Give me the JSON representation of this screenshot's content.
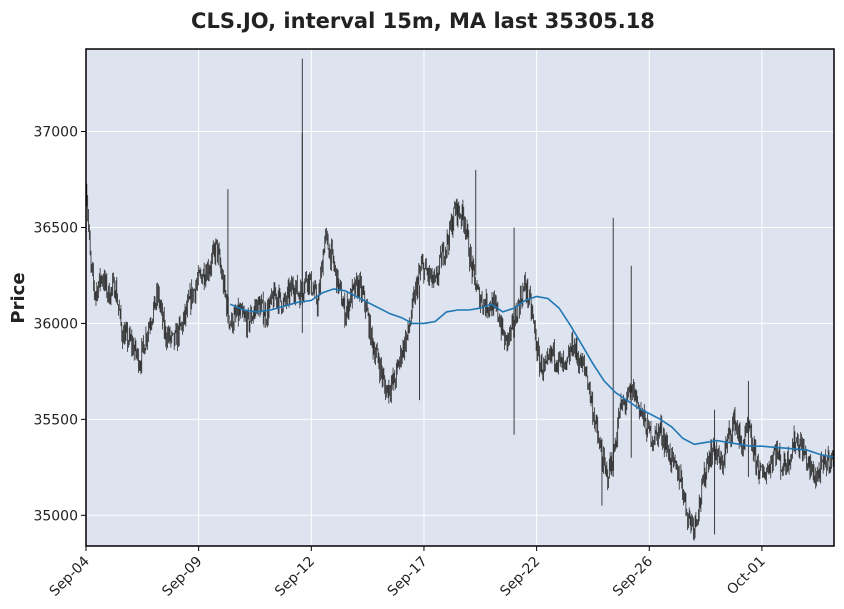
{
  "chart_data": {
    "type": "line",
    "chart_kind": "ohlc-candlestick-with-moving-average",
    "title": "CLS.JO, interval 15m, MA last 35305.18",
    "xlabel": "",
    "ylabel": "Price",
    "ylim": [
      34840,
      37430
    ],
    "yticks": [
      35000,
      35500,
      36000,
      36500,
      37000
    ],
    "x_tick_labels": [
      "Sep-04",
      "Sep-09",
      "Sep-12",
      "Sep-17",
      "Sep-22",
      "Sep-26",
      "Oct-01"
    ],
    "x_tick_positions": [
      0,
      5,
      10,
      15,
      20,
      25,
      30
    ],
    "x_range": [
      0,
      33.2
    ],
    "grid": true,
    "background": "#dde3ef",
    "colors": {
      "candles": "#2b2b2b",
      "ma": "#1f77b4",
      "grid": "#ffffff",
      "frame": "#000000"
    },
    "price_path": [
      [
        0.0,
        36750
      ],
      [
        0.2,
        36300
      ],
      [
        0.4,
        36150
      ],
      [
        0.7,
        36250
      ],
      [
        1.0,
        36150
      ],
      [
        1.3,
        36200
      ],
      [
        1.6,
        35950
      ],
      [
        2.0,
        35900
      ],
      [
        2.4,
        35800
      ],
      [
        2.8,
        36000
      ],
      [
        3.2,
        36150
      ],
      [
        3.5,
        35950
      ],
      [
        3.9,
        35900
      ],
      [
        4.3,
        36000
      ],
      [
        4.7,
        36150
      ],
      [
        5.1,
        36250
      ],
      [
        5.5,
        36300
      ],
      [
        5.8,
        36400
      ],
      [
        6.1,
        36200
      ],
      [
        6.4,
        36000
      ],
      [
        6.8,
        36050
      ],
      [
        7.2,
        36000
      ],
      [
        7.6,
        36100
      ],
      [
        8.0,
        36050
      ],
      [
        8.4,
        36150
      ],
      [
        8.8,
        36100
      ],
      [
        9.2,
        36200
      ],
      [
        9.5,
        36150
      ],
      [
        9.8,
        36250
      ],
      [
        10.0,
        36200
      ],
      [
        10.3,
        36100
      ],
      [
        10.6,
        36450
      ],
      [
        10.9,
        36350
      ],
      [
        11.2,
        36200
      ],
      [
        11.5,
        36050
      ],
      [
        11.8,
        36150
      ],
      [
        12.1,
        36200
      ],
      [
        12.4,
        36100
      ],
      [
        12.7,
        35900
      ],
      [
        13.0,
        35800
      ],
      [
        13.3,
        35650
      ],
      [
        13.7,
        35700
      ],
      [
        14.0,
        35850
      ],
      [
        14.3,
        35950
      ],
      [
        14.6,
        36150
      ],
      [
        14.9,
        36300
      ],
      [
        15.2,
        36250
      ],
      [
        15.5,
        36200
      ],
      [
        15.8,
        36350
      ],
      [
        16.1,
        36450
      ],
      [
        16.4,
        36600
      ],
      [
        16.8,
        36550
      ],
      [
        17.1,
        36300
      ],
      [
        17.4,
        36150
      ],
      [
        17.7,
        36100
      ],
      [
        18.0,
        36100
      ],
      [
        18.3,
        36050
      ],
      [
        18.6,
        35900
      ],
      [
        18.9,
        35950
      ],
      [
        19.2,
        36100
      ],
      [
        19.5,
        36200
      ],
      [
        19.8,
        36050
      ],
      [
        20.1,
        35800
      ],
      [
        20.4,
        35750
      ],
      [
        20.7,
        35850
      ],
      [
        21.0,
        35800
      ],
      [
        21.3,
        35750
      ],
      [
        21.6,
        35900
      ],
      [
        21.9,
        35800
      ],
      [
        22.2,
        35750
      ],
      [
        22.5,
        35550
      ],
      [
        22.8,
        35350
      ],
      [
        23.1,
        35200
      ],
      [
        23.4,
        35300
      ],
      [
        23.7,
        35550
      ],
      [
        24.0,
        35600
      ],
      [
        24.3,
        35650
      ],
      [
        24.6,
        35550
      ],
      [
        24.9,
        35450
      ],
      [
        25.2,
        35400
      ],
      [
        25.5,
        35450
      ],
      [
        25.8,
        35350
      ],
      [
        26.1,
        35250
      ],
      [
        26.4,
        35200
      ],
      [
        26.7,
        35000
      ],
      [
        27.0,
        34950
      ],
      [
        27.3,
        35100
      ],
      [
        27.6,
        35300
      ],
      [
        27.9,
        35350
      ],
      [
        28.2,
        35250
      ],
      [
        28.5,
        35400
      ],
      [
        28.8,
        35500
      ],
      [
        29.1,
        35350
      ],
      [
        29.4,
        35450
      ],
      [
        29.7,
        35300
      ],
      [
        30.0,
        35200
      ],
      [
        30.3,
        35250
      ],
      [
        30.6,
        35350
      ],
      [
        30.9,
        35250
      ],
      [
        31.2,
        35300
      ],
      [
        31.5,
        35400
      ],
      [
        31.8,
        35350
      ],
      [
        32.1,
        35250
      ],
      [
        32.4,
        35200
      ],
      [
        32.7,
        35250
      ],
      [
        33.0,
        35300
      ],
      [
        33.2,
        35280
      ]
    ],
    "spikes": [
      [
        9.6,
        37380,
        35950
      ],
      [
        9.6,
        36990,
        36100
      ],
      [
        6.3,
        36700,
        36000
      ],
      [
        14.8,
        36200,
        35600
      ],
      [
        17.3,
        36800,
        36250
      ],
      [
        19.0,
        36500,
        35420
      ],
      [
        23.4,
        36550,
        35200
      ],
      [
        24.2,
        36300,
        35300
      ],
      [
        22.9,
        35400,
        35050
      ],
      [
        29.4,
        35700,
        35200
      ],
      [
        27.9,
        35550,
        34900
      ]
    ],
    "ma_line": [
      [
        6.4,
        36100
      ],
      [
        7.0,
        36070
      ],
      [
        7.6,
        36060
      ],
      [
        8.2,
        36070
      ],
      [
        8.8,
        36090
      ],
      [
        9.4,
        36110
      ],
      [
        10.0,
        36120
      ],
      [
        10.5,
        36160
      ],
      [
        11.0,
        36180
      ],
      [
        11.5,
        36170
      ],
      [
        12.0,
        36140
      ],
      [
        12.5,
        36110
      ],
      [
        13.0,
        36080
      ],
      [
        13.5,
        36050
      ],
      [
        14.0,
        36030
      ],
      [
        14.5,
        36000
      ],
      [
        15.0,
        36000
      ],
      [
        15.5,
        36010
      ],
      [
        16.0,
        36060
      ],
      [
        16.5,
        36070
      ],
      [
        17.0,
        36070
      ],
      [
        17.5,
        36080
      ],
      [
        18.0,
        36100
      ],
      [
        18.5,
        36060
      ],
      [
        19.0,
        36080
      ],
      [
        19.5,
        36120
      ],
      [
        20.0,
        36140
      ],
      [
        20.5,
        36130
      ],
      [
        21.0,
        36080
      ],
      [
        21.5,
        35990
      ],
      [
        22.0,
        35890
      ],
      [
        22.5,
        35790
      ],
      [
        23.0,
        35700
      ],
      [
        23.5,
        35640
      ],
      [
        24.0,
        35600
      ],
      [
        24.5,
        35560
      ],
      [
        25.0,
        35530
      ],
      [
        25.5,
        35500
      ],
      [
        26.0,
        35460
      ],
      [
        26.5,
        35400
      ],
      [
        27.0,
        35370
      ],
      [
        27.5,
        35380
      ],
      [
        28.0,
        35390
      ],
      [
        28.5,
        35380
      ],
      [
        29.0,
        35370
      ],
      [
        29.5,
        35360
      ],
      [
        30.0,
        35360
      ],
      [
        30.5,
        35355
      ],
      [
        31.0,
        35350
      ],
      [
        31.5,
        35345
      ],
      [
        32.0,
        35340
      ],
      [
        32.5,
        35320
      ],
      [
        33.0,
        35306
      ],
      [
        33.2,
        35305
      ]
    ]
  }
}
